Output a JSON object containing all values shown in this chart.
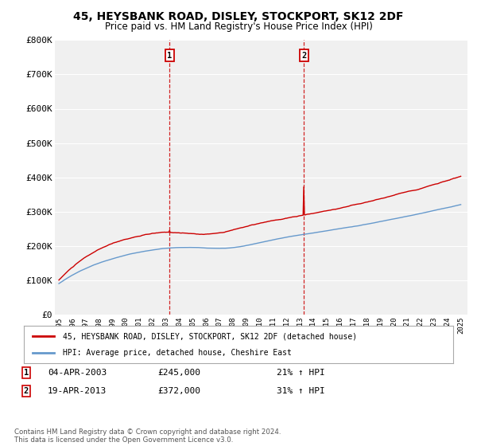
{
  "title": "45, HEYSBANK ROAD, DISLEY, STOCKPORT, SK12 2DF",
  "subtitle": "Price paid vs. HM Land Registry's House Price Index (HPI)",
  "title_fontsize": 10,
  "subtitle_fontsize": 8.5,
  "background_color": "#ffffff",
  "plot_bg_color": "#f0f0f0",
  "grid_color": "#ffffff",
  "legend_label_red": "45, HEYSBANK ROAD, DISLEY, STOCKPORT, SK12 2DF (detached house)",
  "legend_label_blue": "HPI: Average price, detached house, Cheshire East",
  "red_color": "#cc0000",
  "blue_color": "#6699cc",
  "sale1_year": 2003.27,
  "sale2_year": 2013.3,
  "sale1_val": 245000,
  "sale2_val": 372000,
  "annotation1_date": "04-APR-2003",
  "annotation1_price": "£245,000",
  "annotation1_hpi": "21% ↑ HPI",
  "annotation2_date": "19-APR-2013",
  "annotation2_price": "£372,000",
  "annotation2_hpi": "31% ↑ HPI",
  "footnote": "Contains HM Land Registry data © Crown copyright and database right 2024.\nThis data is licensed under the Open Government Licence v3.0.",
  "ylim": [
    0,
    800000
  ],
  "yticks": [
    0,
    100000,
    200000,
    300000,
    400000,
    500000,
    600000,
    700000,
    800000
  ],
  "start_year": 1995,
  "end_year": 2025,
  "xtick_years": [
    1995,
    1996,
    1997,
    1998,
    1999,
    2000,
    2001,
    2002,
    2003,
    2004,
    2005,
    2006,
    2007,
    2008,
    2009,
    2010,
    2011,
    2012,
    2013,
    2014,
    2015,
    2016,
    2017,
    2018,
    2019,
    2020,
    2021,
    2022,
    2023,
    2024,
    2025
  ]
}
